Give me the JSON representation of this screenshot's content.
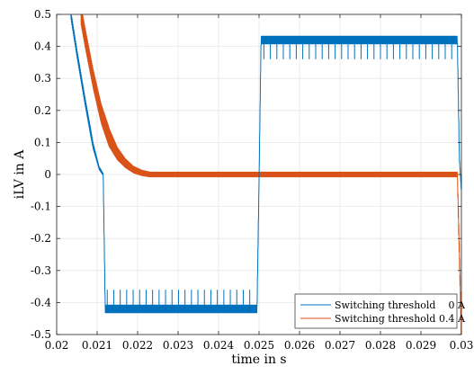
{
  "chart_data": {
    "type": "line",
    "title": "",
    "xlabel": "time in s",
    "ylabel": "iLV in A",
    "xlim": [
      0.02,
      0.03
    ],
    "ylim": [
      -0.5,
      0.5
    ],
    "xticks": [
      0.02,
      0.021,
      0.022,
      0.023,
      0.024,
      0.025,
      0.026,
      0.027,
      0.028,
      0.029,
      0.03
    ],
    "xtick_labels": [
      "0.02",
      "0.021",
      "0.022",
      "0.023",
      "0.024",
      "0.025",
      "0.026",
      "0.027",
      "0.028",
      "0.029",
      "0.03"
    ],
    "yticks": [
      0.5,
      0.4,
      0.3,
      0.2,
      0.1,
      0,
      -0.1,
      -0.2,
      -0.3,
      -0.4,
      -0.5
    ],
    "ytick_labels": [
      "0.5",
      "0.4",
      "0.3",
      "0.2",
      "0.1",
      "0",
      "-0.1",
      "-0.2",
      "-0.3",
      "-0.4",
      "-0.5"
    ],
    "grid": true,
    "legend_position": "bottom-right",
    "series": [
      {
        "name": "Switching threshold    0 A",
        "color": "#0072bd",
        "x": [
          0.02035,
          0.0205,
          0.0207,
          0.0209,
          0.02105,
          0.02115,
          0.0212,
          0.0213,
          0.0215,
          0.022,
          0.0225,
          0.023,
          0.0235,
          0.024,
          0.0245,
          0.02495,
          0.025,
          0.02505,
          0.0251,
          0.0252,
          0.0255,
          0.026,
          0.0265,
          0.027,
          0.0275,
          0.028,
          0.0285,
          0.029,
          0.0295,
          0.0299,
          0.02995,
          0.03
        ],
        "y": [
          0.5,
          0.38,
          0.23,
          0.09,
          0.02,
          0.0,
          -0.42,
          -0.42,
          -0.42,
          -0.42,
          -0.42,
          -0.42,
          -0.42,
          -0.42,
          -0.42,
          -0.42,
          -0.02,
          0.42,
          0.42,
          0.42,
          0.42,
          0.42,
          0.42,
          0.42,
          0.42,
          0.42,
          0.42,
          0.42,
          0.42,
          0.42,
          0.05,
          -0.05
        ],
        "ripple": 0.012,
        "spikes": {
          "spacing": 0.00016,
          "depth": 0.06,
          "ranges": [
            [
              0.02125,
              0.02492
            ],
            [
              0.02512,
              0.02992
            ]
          ]
        }
      },
      {
        "name": "Switching threshold 0.4 A",
        "color": "#d95319",
        "x": [
          0.0206,
          0.0207,
          0.0209,
          0.0211,
          0.0213,
          0.0215,
          0.0217,
          0.0219,
          0.0221,
          0.0223,
          0.0225,
          0.026,
          0.029,
          0.0299,
          0.03
        ],
        "y": [
          0.5,
          0.43,
          0.3,
          0.19,
          0.115,
          0.065,
          0.035,
          0.015,
          0.005,
          0.0,
          0.0,
          0.0,
          0.0,
          0.0,
          -0.5
        ],
        "ripple": 0.03
      }
    ]
  }
}
